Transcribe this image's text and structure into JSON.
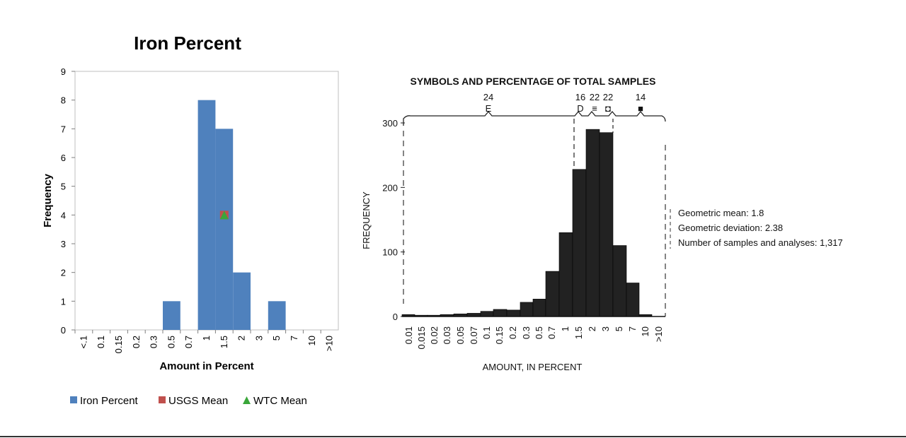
{
  "chart_data": [
    {
      "type": "bar",
      "title": "Iron Percent",
      "xlabel": "Amount in Percent",
      "ylabel": "Frequency",
      "ylim": [
        0,
        9
      ],
      "yticks": [
        0,
        1,
        2,
        3,
        4,
        5,
        6,
        7,
        8,
        9
      ],
      "categories": [
        "<.1",
        "0.1",
        "0.15",
        "0.2",
        "0.3",
        "0.5",
        "0.7",
        "1",
        "1.5",
        "2",
        "3",
        "5",
        "7",
        "10",
        ">10"
      ],
      "series": [
        {
          "name": "Iron Percent",
          "color": "#4f81bd",
          "values": [
            0,
            0,
            0,
            0,
            0,
            1,
            0,
            8,
            7,
            2,
            0,
            1,
            0,
            0,
            0
          ]
        }
      ],
      "markers": [
        {
          "name": "USGS Mean",
          "color": "#c0504d",
          "shape": "square",
          "x": 1.5,
          "y": 4
        },
        {
          "name": "WTC Mean",
          "color": "#3aa63a",
          "shape": "triangle",
          "x": 1.5,
          "y": 4
        }
      ],
      "legend": [
        "Iron Percent",
        "USGS Mean",
        "WTC Mean"
      ],
      "legend_position": "bottom",
      "grid": false
    },
    {
      "type": "bar",
      "title": "SYMBOLS AND PERCENTAGE OF TOTAL SAMPLES",
      "xlabel": "AMOUNT, IN PERCENT",
      "ylabel": "FREQUENCY",
      "ylim": [
        0,
        300
      ],
      "yticks": [
        0,
        100,
        200,
        300
      ],
      "x_tick_labels": [
        "0.01",
        "0.015",
        "0.02",
        "0.03",
        "0.05",
        "0.07",
        "0.1",
        "0.15",
        "0.2",
        "0.3",
        "0.5",
        "0.7",
        "1",
        "1.5",
        "2",
        "3",
        "5",
        "7",
        "10",
        ">10"
      ],
      "bar_color": "#222222",
      "values": [
        3,
        2,
        2,
        3,
        4,
        5,
        8,
        11,
        10,
        22,
        27,
        70,
        130,
        228,
        290,
        285,
        110,
        52,
        3,
        0
      ],
      "symbol_groups": [
        {
          "label": "24",
          "symbol": "E"
        },
        {
          "label": "16",
          "symbol": "D"
        },
        {
          "label": "22",
          "symbol": "≡"
        },
        {
          "label": "22",
          "symbol": "◘"
        },
        {
          "label": "14",
          "symbol": "■"
        }
      ],
      "annotations": [
        "Geometric mean:   1.8",
        "Geometric deviation:   2.38",
        "Number of samples and analyses:   1,317"
      ]
    }
  ]
}
